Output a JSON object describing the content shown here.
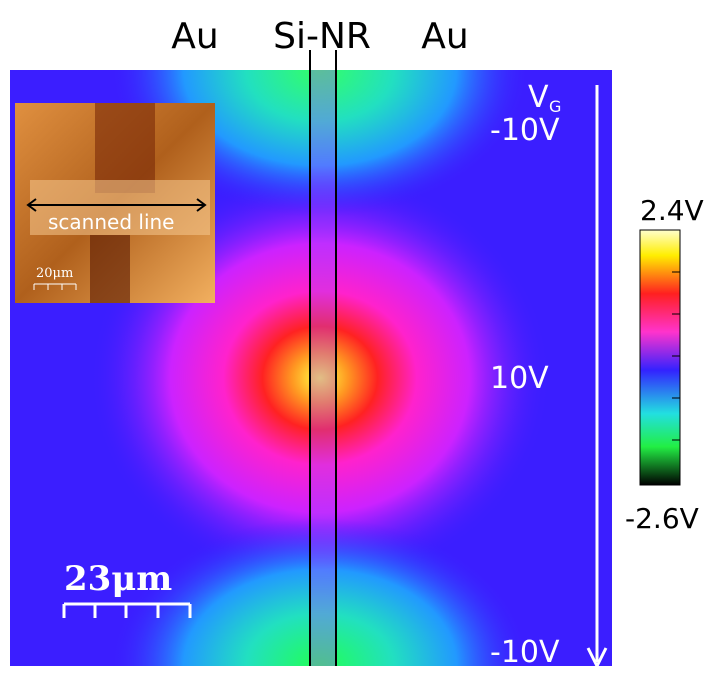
{
  "labels": {
    "left_electrode": "Au",
    "nanoribbon": "Si-NR",
    "right_electrode": "Au"
  },
  "axis": {
    "symbol": "V",
    "subscript": "G",
    "top": "-10V",
    "middle": "10V",
    "bottom": "-10V"
  },
  "colorbar": {
    "max": "2.4V",
    "min": "-2.6V"
  },
  "inset": {
    "line_label": "scanned line",
    "scale": "20μm"
  },
  "scale_bar": "23μm"
}
